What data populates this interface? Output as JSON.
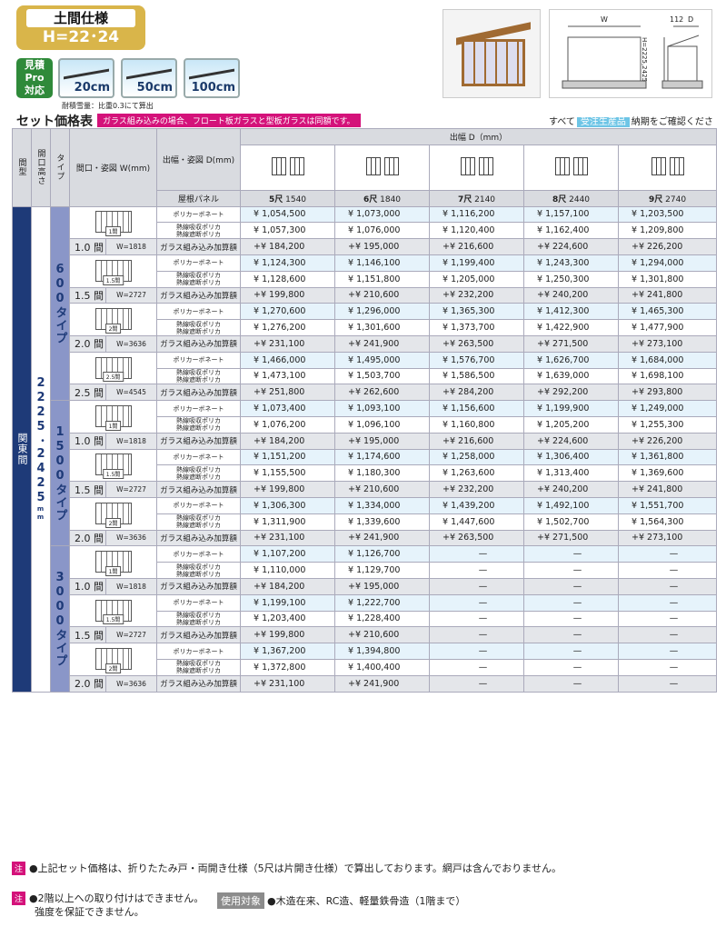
{
  "badge": {
    "title": "土間仕様",
    "height": "H=22･24"
  },
  "mitsumori": {
    "line1": "見積",
    "line2": "Pro",
    "line3": "対応"
  },
  "snow_load": {
    "options": [
      "20cm",
      "50cm",
      "100cm"
    ],
    "note": "耐積雪量：比重0.3にて算出"
  },
  "drawing": {
    "w": "W",
    "d": "D",
    "dim112": "112",
    "h": "H=2225,2425"
  },
  "section": {
    "title": "セット価格表",
    "note": "ガラス組み込みの場合、フロート板ガラスと型板ガラスは同額です。",
    "right_pre": "すべて",
    "right_tag": "受注生産品",
    "right_post": "納期をご確認ください。"
  },
  "header": {
    "type": "間型",
    "height": "開口高さ",
    "taipu": "タイプ",
    "opening": "間口・姿図 W(mm)",
    "depth_label": "出幅・姿図 D(mm)",
    "depth_group": "出幅 D（mm）",
    "roof": "屋根パネル"
  },
  "depths": [
    {
      "shaku": "5尺",
      "mm": "1540"
    },
    {
      "shaku": "6尺",
      "mm": "1840"
    },
    {
      "shaku": "7尺",
      "mm": "2140"
    },
    {
      "shaku": "8尺",
      "mm": "2440"
    },
    {
      "shaku": "9尺",
      "mm": "2740"
    }
  ],
  "region": "関東間",
  "height_value": "2225･2425",
  "height_unit": "mm",
  "labels": {
    "poly": "ポリカーボネート",
    "heat1": "熱線吸収ポリカ",
    "heat2": "熱線遮断ポリカ",
    "glass": "ガラス組み込み加算額"
  },
  "groups": [
    {
      "type": "600タイプ",
      "rows": [
        {
          "size": "1.0",
          "ken": "間",
          "w": "W=1818",
          "fig": "1間",
          "poly": [
            "¥ 1,054,500",
            "¥ 1,073,000",
            "¥ 1,116,200",
            "¥ 1,157,100",
            "¥ 1,203,500"
          ],
          "heat": [
            "¥ 1,057,300",
            "¥ 1,076,000",
            "¥ 1,120,400",
            "¥ 1,162,400",
            "¥ 1,209,800"
          ],
          "glass": [
            "+¥ 184,200",
            "+¥ 195,000",
            "+¥ 216,600",
            "+¥ 224,600",
            "+¥ 226,200"
          ]
        },
        {
          "size": "1.5",
          "ken": "間",
          "w": "W=2727",
          "fig": "1.5間",
          "poly": [
            "¥ 1,124,300",
            "¥ 1,146,100",
            "¥ 1,199,400",
            "¥ 1,243,300",
            "¥ 1,294,000"
          ],
          "heat": [
            "¥ 1,128,600",
            "¥ 1,151,800",
            "¥ 1,205,000",
            "¥ 1,250,300",
            "¥ 1,301,800"
          ],
          "glass": [
            "+¥ 199,800",
            "+¥ 210,600",
            "+¥ 232,200",
            "+¥ 240,200",
            "+¥ 241,800"
          ]
        },
        {
          "size": "2.0",
          "ken": "間",
          "w": "W=3636",
          "fig": "2間",
          "poly": [
            "¥ 1,270,600",
            "¥ 1,296,000",
            "¥ 1,365,300",
            "¥ 1,412,300",
            "¥ 1,465,300"
          ],
          "heat": [
            "¥ 1,276,200",
            "¥ 1,301,600",
            "¥ 1,373,700",
            "¥ 1,422,900",
            "¥ 1,477,900"
          ],
          "glass": [
            "+¥ 231,100",
            "+¥ 241,900",
            "+¥ 263,500",
            "+¥ 271,500",
            "+¥ 273,100"
          ]
        },
        {
          "size": "2.5",
          "ken": "間",
          "w": "W=4545",
          "fig": "2.5間",
          "poly": [
            "¥ 1,466,000",
            "¥ 1,495,000",
            "¥ 1,576,700",
            "¥ 1,626,700",
            "¥ 1,684,000"
          ],
          "heat": [
            "¥ 1,473,100",
            "¥ 1,503,700",
            "¥ 1,586,500",
            "¥ 1,639,000",
            "¥ 1,698,100"
          ],
          "glass": [
            "+¥ 251,800",
            "+¥ 262,600",
            "+¥ 284,200",
            "+¥ 292,200",
            "+¥ 293,800"
          ]
        }
      ]
    },
    {
      "type": "1500タイプ",
      "rows": [
        {
          "size": "1.0",
          "ken": "間",
          "w": "W=1818",
          "fig": "1間",
          "poly": [
            "¥ 1,073,400",
            "¥ 1,093,100",
            "¥ 1,156,600",
            "¥ 1,199,900",
            "¥ 1,249,000"
          ],
          "heat": [
            "¥ 1,076,200",
            "¥ 1,096,100",
            "¥ 1,160,800",
            "¥ 1,205,200",
            "¥ 1,255,300"
          ],
          "glass": [
            "+¥ 184,200",
            "+¥ 195,000",
            "+¥ 216,600",
            "+¥ 224,600",
            "+¥ 226,200"
          ]
        },
        {
          "size": "1.5",
          "ken": "間",
          "w": "W=2727",
          "fig": "1.5間",
          "poly": [
            "¥ 1,151,200",
            "¥ 1,174,600",
            "¥ 1,258,000",
            "¥ 1,306,400",
            "¥ 1,361,800"
          ],
          "heat": [
            "¥ 1,155,500",
            "¥ 1,180,300",
            "¥ 1,263,600",
            "¥ 1,313,400",
            "¥ 1,369,600"
          ],
          "glass": [
            "+¥ 199,800",
            "+¥ 210,600",
            "+¥ 232,200",
            "+¥ 240,200",
            "+¥ 241,800"
          ]
        },
        {
          "size": "2.0",
          "ken": "間",
          "w": "W=3636",
          "fig": "2間",
          "poly": [
            "¥ 1,306,300",
            "¥ 1,334,000",
            "¥ 1,439,200",
            "¥ 1,492,100",
            "¥ 1,551,700"
          ],
          "heat": [
            "¥ 1,311,900",
            "¥ 1,339,600",
            "¥ 1,447,600",
            "¥ 1,502,700",
            "¥ 1,564,300"
          ],
          "glass": [
            "+¥ 231,100",
            "+¥ 241,900",
            "+¥ 263,500",
            "+¥ 271,500",
            "+¥ 273,100"
          ]
        }
      ]
    },
    {
      "type": "3000タイプ",
      "rows": [
        {
          "size": "1.0",
          "ken": "間",
          "w": "W=1818",
          "fig": "1間",
          "poly": [
            "¥ 1,107,200",
            "¥ 1,126,700",
            "—",
            "—",
            "—"
          ],
          "heat": [
            "¥ 1,110,000",
            "¥ 1,129,700",
            "—",
            "—",
            "—"
          ],
          "glass": [
            "+¥ 184,200",
            "+¥ 195,000",
            "—",
            "—",
            "—"
          ]
        },
        {
          "size": "1.5",
          "ken": "間",
          "w": "W=2727",
          "fig": "1.5間",
          "poly": [
            "¥ 1,199,100",
            "¥ 1,222,700",
            "—",
            "—",
            "—"
          ],
          "heat": [
            "¥ 1,203,400",
            "¥ 1,228,400",
            "—",
            "—",
            "—"
          ],
          "glass": [
            "+¥ 199,800",
            "+¥ 210,600",
            "—",
            "—",
            "—"
          ]
        },
        {
          "size": "2.0",
          "ken": "間",
          "w": "W=3636",
          "fig": "2間",
          "poly": [
            "¥ 1,367,200",
            "¥ 1,394,800",
            "—",
            "—",
            "—"
          ],
          "heat": [
            "¥ 1,372,800",
            "¥ 1,400,400",
            "—",
            "—",
            "—"
          ],
          "glass": [
            "+¥ 231,100",
            "+¥ 241,900",
            "—",
            "—",
            "—"
          ]
        }
      ]
    }
  ],
  "footer": {
    "tag": "注",
    "note1": "●上記セット価格は、折りたたみ戸・両開き仕様（5尺は片開き仕様）で算出しております。網戸は含んでおりません。",
    "note2a": "●2階以上への取り付けはできません。",
    "note2b": "強度を保証できません。",
    "use_tag": "使用対象",
    "use_text": "●木造在来、RC造、軽量鉄骨造（1階まで）"
  }
}
